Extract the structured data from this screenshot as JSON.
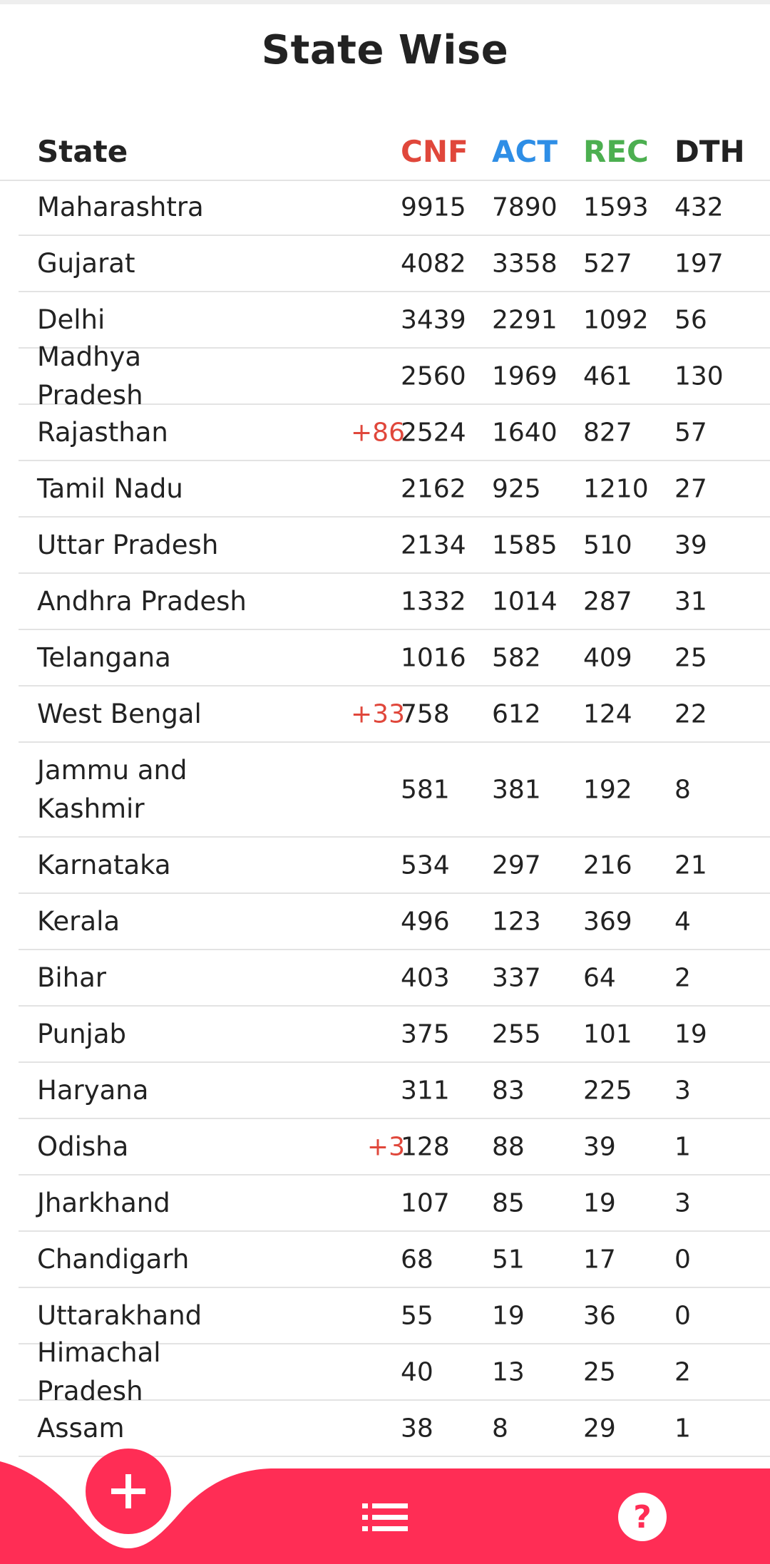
{
  "page_title": "State Wise",
  "table": {
    "headers": {
      "state": "State",
      "cnf": "CNF",
      "act": "ACT",
      "rec": "REC",
      "dth": "DTH"
    },
    "header_colors": {
      "cnf": "#e0473b",
      "act": "#2e8ee6",
      "rec": "#4caf50",
      "dth": "#222222"
    },
    "rows": [
      {
        "state": "Maharashtra",
        "delta": "",
        "cnf": "9915",
        "act": "7890",
        "rec": "1593",
        "dth": "432"
      },
      {
        "state": "Gujarat",
        "delta": "",
        "cnf": "4082",
        "act": "3358",
        "rec": "527",
        "dth": "197"
      },
      {
        "state": "Delhi",
        "delta": "",
        "cnf": "3439",
        "act": "2291",
        "rec": "1092",
        "dth": "56"
      },
      {
        "state": "Madhya Pradesh",
        "delta": "",
        "cnf": "2560",
        "act": "1969",
        "rec": "461",
        "dth": "130"
      },
      {
        "state": "Rajasthan",
        "delta": "+86",
        "cnf": "2524",
        "act": "1640",
        "rec": "827",
        "dth": "57"
      },
      {
        "state": "Tamil Nadu",
        "delta": "",
        "cnf": "2162",
        "act": "925",
        "rec": "1210",
        "dth": "27"
      },
      {
        "state": "Uttar Pradesh",
        "delta": "",
        "cnf": "2134",
        "act": "1585",
        "rec": "510",
        "dth": "39"
      },
      {
        "state": "Andhra Pradesh",
        "delta": "",
        "cnf": "1332",
        "act": "1014",
        "rec": "287",
        "dth": "31"
      },
      {
        "state": "Telangana",
        "delta": "",
        "cnf": "1016",
        "act": "582",
        "rec": "409",
        "dth": "25"
      },
      {
        "state": "West Bengal",
        "delta": "+33",
        "cnf": "758",
        "act": "612",
        "rec": "124",
        "dth": "22"
      },
      {
        "state": "Jammu and Kashmir",
        "delta": "",
        "cnf": "581",
        "act": "381",
        "rec": "192",
        "dth": "8"
      },
      {
        "state": "Karnataka",
        "delta": "",
        "cnf": "534",
        "act": "297",
        "rec": "216",
        "dth": "21"
      },
      {
        "state": "Kerala",
        "delta": "",
        "cnf": "496",
        "act": "123",
        "rec": "369",
        "dth": "4"
      },
      {
        "state": "Bihar",
        "delta": "",
        "cnf": "403",
        "act": "337",
        "rec": "64",
        "dth": "2"
      },
      {
        "state": "Punjab",
        "delta": "",
        "cnf": "375",
        "act": "255",
        "rec": "101",
        "dth": "19"
      },
      {
        "state": "Haryana",
        "delta": "",
        "cnf": "311",
        "act": "83",
        "rec": "225",
        "dth": "3"
      },
      {
        "state": "Odisha",
        "delta": "+3",
        "cnf": "128",
        "act": "88",
        "rec": "39",
        "dth": "1"
      },
      {
        "state": "Jharkhand",
        "delta": "",
        "cnf": "107",
        "act": "85",
        "rec": "19",
        "dth": "3"
      },
      {
        "state": "Chandigarh",
        "delta": "",
        "cnf": "68",
        "act": "51",
        "rec": "17",
        "dth": "0"
      },
      {
        "state": "Uttarakhand",
        "delta": "",
        "cnf": "55",
        "act": "19",
        "rec": "36",
        "dth": "0"
      },
      {
        "state": "Himachal Pradesh",
        "delta": "",
        "cnf": "40",
        "act": "13",
        "rec": "25",
        "dth": "2"
      },
      {
        "state": "Assam",
        "delta": "",
        "cnf": "38",
        "act": "8",
        "rec": "29",
        "dth": "1"
      }
    ]
  },
  "bottom_nav": {
    "accent_color": "#ff2d55",
    "items": [
      {
        "icon": "plus-icon"
      },
      {
        "icon": "list-icon"
      },
      {
        "icon": "help-icon"
      }
    ]
  }
}
